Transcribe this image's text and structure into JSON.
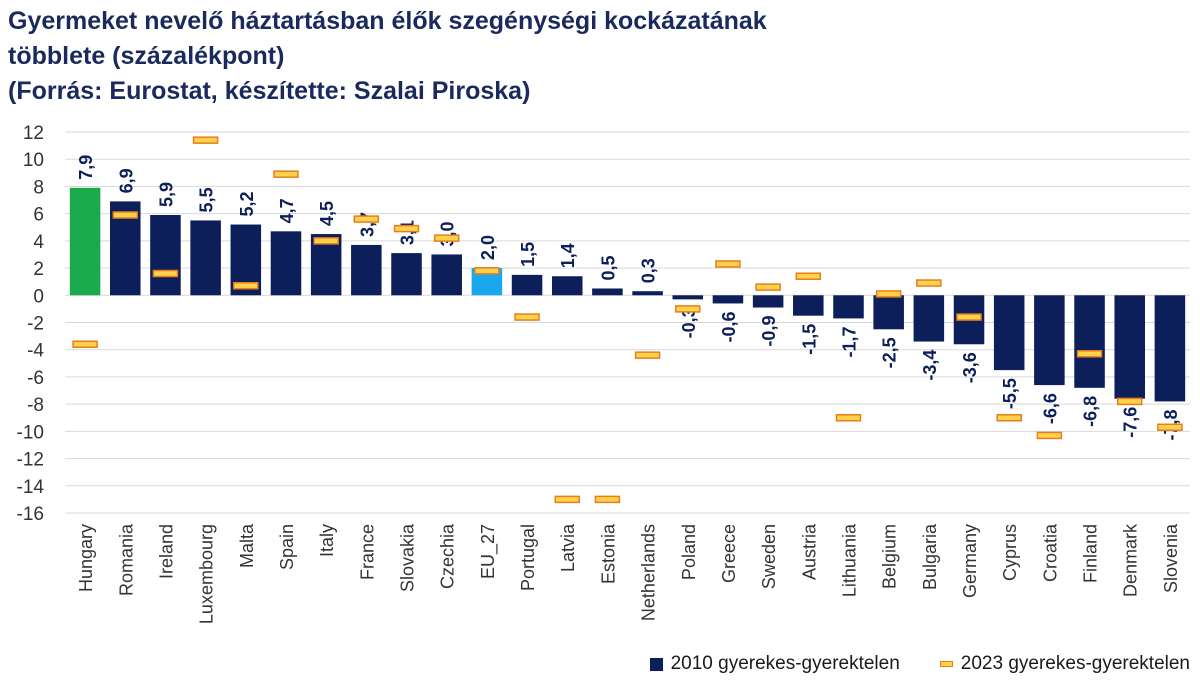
{
  "chart_data": {
    "type": "bar",
    "title_lines": [
      "Gyermeket nevelő háztartásban élők szegénységi kockázatának",
      "többlete (százalékpont)",
      "(Forrás: Eurostat, készítette: Szalai Piroska)"
    ],
    "categories": [
      "Hungary",
      "Romania",
      "Ireland",
      "Luxembourg",
      "Malta",
      "Spain",
      "Italy",
      "France",
      "Slovakia",
      "Czechia",
      "EU_27",
      "Portugal",
      "Latvia",
      "Estonia",
      "Netherlands",
      "Poland",
      "Greece",
      "Sweden",
      "Austria",
      "Lithuania",
      "Belgium",
      "Bulgaria",
      "Germany",
      "Cyprus",
      "Croatia",
      "Finland",
      "Denmark",
      "Slovenia"
    ],
    "series": [
      {
        "name": "2010 gyerekes-gyerektelen",
        "type": "bar",
        "values": [
          7.9,
          6.9,
          5.9,
          5.5,
          5.2,
          4.7,
          4.5,
          3.7,
          3.1,
          3.0,
          2.0,
          1.5,
          1.4,
          0.5,
          0.3,
          -0.3,
          -0.6,
          -0.9,
          -1.5,
          -1.7,
          -2.5,
          -3.4,
          -3.6,
          -5.5,
          -6.6,
          -6.8,
          -7.6,
          -7.8
        ],
        "labels": [
          "7,9",
          "6,9",
          "5,9",
          "5,5",
          "5,2",
          "4,7",
          "4,5",
          "3,7",
          "3,1",
          "3,0",
          "2,0",
          "1,5",
          "1,4",
          "0,5",
          "0,3",
          "-0,3",
          "-0,6",
          "-0,9",
          "-1,5",
          "-1,7",
          "-2,5",
          "-3,4",
          "-3,6",
          "-5,5",
          "-6,6",
          "-6,8",
          "-7,6",
          "-7,8"
        ],
        "color": "#0c1f5b"
      },
      {
        "name": "2023 gyerekes-gyerektelen",
        "type": "marker",
        "values": [
          -3.6,
          5.9,
          1.6,
          11.4,
          0.7,
          8.9,
          4.0,
          5.6,
          4.9,
          4.2,
          1.8,
          -1.6,
          -15.0,
          -15.0,
          -4.4,
          -1.0,
          2.3,
          0.6,
          1.4,
          -9.0,
          0.1,
          0.9,
          -1.6,
          -9.0,
          -10.3,
          -4.3,
          -7.8,
          -9.7
        ],
        "color": "#ffd24a",
        "edge_color": "#e57e1f"
      }
    ],
    "highlight_colors": {
      "Hungary": "#1aaa4b",
      "EU_27": "#1aa7ee"
    },
    "label_color": "#0c1f5b",
    "yticks": [
      12,
      10,
      8,
      6,
      4,
      2,
      0,
      -2,
      -4,
      -6,
      -8,
      -10,
      -12,
      -14,
      -16
    ],
    "ylim": [
      -16,
      12
    ],
    "grid": true
  }
}
